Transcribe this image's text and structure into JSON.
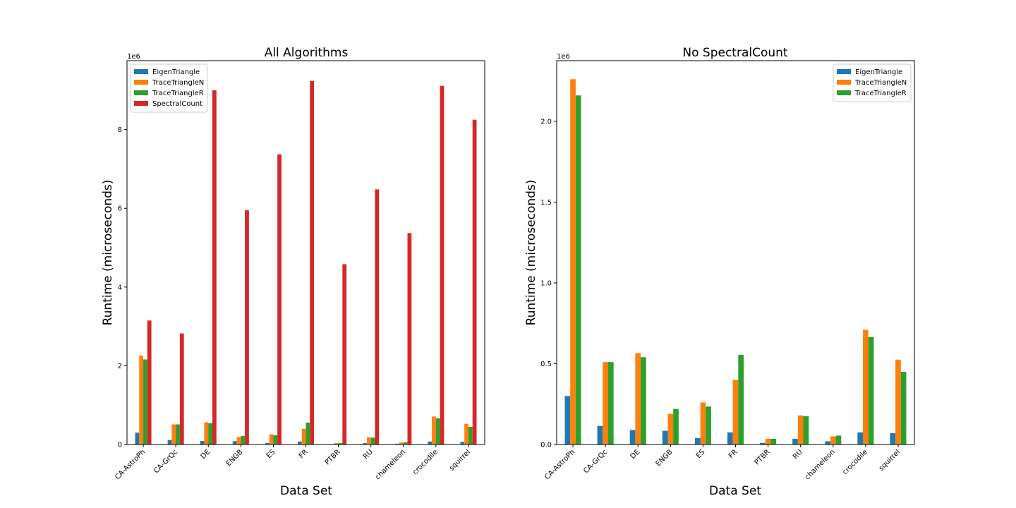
{
  "chart_data": [
    {
      "type": "bar",
      "title": "All Algorithms",
      "xlabel": "Data Set",
      "ylabel": "Runtime (microseconds)",
      "ylim": [
        0,
        9750000
      ],
      "y_offset_label": "1e6",
      "y_ticks": [
        0,
        2000000,
        4000000,
        6000000,
        8000000
      ],
      "y_tick_labels": [
        "0",
        "2",
        "4",
        "6",
        "8"
      ],
      "legend_position": "top-left",
      "categories": [
        "CA-AstroPh",
        "CA-GrQc",
        "DE",
        "ENGB",
        "ES",
        "FR",
        "PTBR",
        "RU",
        "chameleon",
        "crocodile",
        "squirrel"
      ],
      "series": [
        {
          "name": "EigenTriangle",
          "color": "#1f77b4",
          "values": [
            300000,
            115000,
            90000,
            85000,
            40000,
            75000,
            10000,
            35000,
            20000,
            75000,
            70000
          ]
        },
        {
          "name": "TraceTriangleN",
          "color": "#ff7f0e",
          "values": [
            2260000,
            510000,
            565000,
            190000,
            260000,
            400000,
            35000,
            180000,
            50000,
            710000,
            525000
          ]
        },
        {
          "name": "TraceTriangleR",
          "color": "#2ca02c",
          "values": [
            2160000,
            510000,
            540000,
            220000,
            235000,
            555000,
            35000,
            175000,
            55000,
            665000,
            450000
          ]
        },
        {
          "name": "SpectralCount",
          "color": "#d62728",
          "values": [
            3150000,
            2820000,
            9000000,
            5950000,
            7370000,
            9230000,
            4580000,
            6480000,
            5370000,
            9110000,
            8250000
          ]
        }
      ]
    },
    {
      "type": "bar",
      "title": "No SpectralCount",
      "xlabel": "Data Set",
      "ylabel": "Runtime (microseconds)",
      "ylim": [
        0,
        2375000
      ],
      "y_offset_label": "1e6",
      "y_ticks": [
        0,
        500000,
        1000000,
        1500000,
        2000000
      ],
      "y_tick_labels": [
        "0.0",
        "0.5",
        "1.0",
        "1.5",
        "2.0"
      ],
      "legend_position": "top-right",
      "categories": [
        "CA-AstroPh",
        "CA-GrQc",
        "DE",
        "ENGB",
        "ES",
        "FR",
        "PTBR",
        "RU",
        "chameleon",
        "crocodile",
        "squirrel"
      ],
      "series": [
        {
          "name": "EigenTriangle",
          "color": "#1f77b4",
          "values": [
            300000,
            115000,
            90000,
            85000,
            40000,
            75000,
            10000,
            35000,
            20000,
            75000,
            70000
          ]
        },
        {
          "name": "TraceTriangleN",
          "color": "#ff7f0e",
          "values": [
            2260000,
            510000,
            565000,
            190000,
            260000,
            400000,
            35000,
            180000,
            50000,
            710000,
            525000
          ]
        },
        {
          "name": "TraceTriangleR",
          "color": "#2ca02c",
          "values": [
            2160000,
            510000,
            540000,
            220000,
            235000,
            555000,
            35000,
            175000,
            55000,
            665000,
            450000
          ]
        }
      ]
    }
  ]
}
